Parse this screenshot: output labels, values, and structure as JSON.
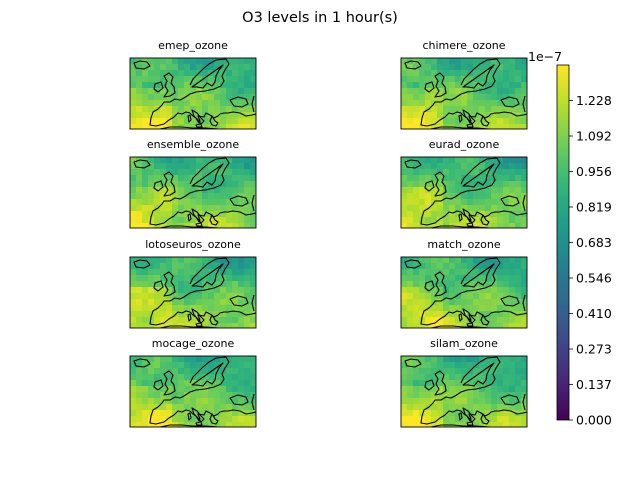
{
  "chart_data": {
    "type": "heatmap",
    "title": "O3 levels in 1 hour(s)",
    "panels": [
      {
        "name": "emep_ozone"
      },
      {
        "name": "chimere_ozone"
      },
      {
        "name": "ensemble_ozone"
      },
      {
        "name": "eurad_ozone"
      },
      {
        "name": "lotoseuros_ozone"
      },
      {
        "name": "match_ozone"
      },
      {
        "name": "mocage_ozone"
      },
      {
        "name": "silam_ozone"
      }
    ],
    "colorbar": {
      "colormap": "viridis",
      "range": [
        0,
        1.365
      ],
      "scale_offset_label": "1e−7",
      "ticks": [
        {
          "value": 0.0,
          "label": "0.000"
        },
        {
          "value": 0.137,
          "label": "0.137"
        },
        {
          "value": 0.273,
          "label": "0.273"
        },
        {
          "value": 0.41,
          "label": "0.410"
        },
        {
          "value": 0.546,
          "label": "0.546"
        },
        {
          "value": 0.683,
          "label": "0.683"
        },
        {
          "value": 0.819,
          "label": "0.819"
        },
        {
          "value": 0.956,
          "label": "0.956"
        },
        {
          "value": 1.092,
          "label": "1.092"
        },
        {
          "value": 1.228,
          "label": "1.228"
        }
      ]
    },
    "colors": {
      "viridis": [
        "#440154",
        "#482878",
        "#3e4989",
        "#31688e",
        "#26828e",
        "#1f9e89",
        "#35b779",
        "#6ece58",
        "#b5de2b",
        "#fde725"
      ],
      "coastline": "#000000"
    }
  }
}
